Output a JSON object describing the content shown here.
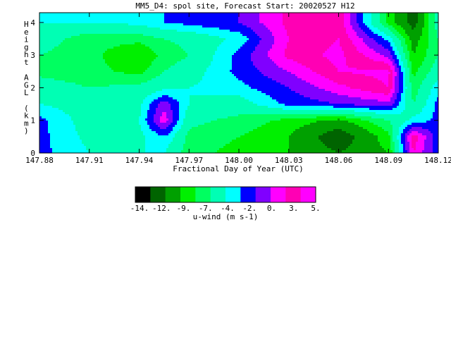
{
  "chart_data": {
    "type": "heatmap",
    "title": "MM5_D4: spol site,  Forecast Start: 20020527 H12",
    "xlabel": "Fractional Day of Year (UTC)",
    "ylabel": "Height AGL (km)",
    "xlim": [
      147.88,
      148.12
    ],
    "ylim": [
      0,
      4.3
    ],
    "x_ticks": [
      "147.88",
      "147.91",
      "147.94",
      "147.97",
      "148.00",
      "148.03",
      "148.06",
      "148.09",
      "148.12"
    ],
    "y_ticks": [
      "0",
      "1",
      "2",
      "3",
      "4"
    ],
    "colorbar": {
      "label": "u-wind (m s-1)",
      "tick_labels": [
        "-14.",
        "-12.",
        "-9.",
        "-7.",
        "-4.",
        "-2.",
        "0.",
        "3.",
        "5."
      ],
      "levels": [
        -14,
        -12.5,
        -11,
        -9,
        -7.5,
        -6,
        -4,
        -2.5,
        -1,
        0.5,
        2,
        3.5,
        5
      ],
      "colors": [
        "#000000",
        "#006400",
        "#00a000",
        "#00f000",
        "#00ff60",
        "#00ffb4",
        "#00ffff",
        "#0000ff",
        "#8000ff",
        "#ff00ff",
        "#ff00b4",
        "#ff00ff"
      ]
    },
    "x": [
      147.88,
      147.91,
      147.94,
      147.955,
      147.97,
      148.0,
      148.03,
      148.06,
      148.09,
      148.105,
      148.12
    ],
    "y": [
      0,
      0.5,
      1.0,
      1.5,
      2.0,
      2.5,
      3.0,
      3.5,
      4.0,
      4.3
    ],
    "z": [
      [
        -2.0,
        -4.0,
        -4.0,
        -4.0,
        -7.0,
        -8.0,
        -9.0,
        -11.0,
        -9.0,
        2.0,
        -2.0
      ],
      [
        -2.0,
        -4.5,
        -4.5,
        -2.5,
        -6.5,
        -7.5,
        -9.0,
        -12.5,
        -8.0,
        3.0,
        -2.0
      ],
      [
        -2.0,
        -5.0,
        -4.0,
        1.5,
        -5.5,
        -6.5,
        -8.0,
        -9.5,
        -6.0,
        -3.5,
        -2.0
      ],
      [
        -4.0,
        -5.0,
        -4.5,
        0.0,
        -4.0,
        -5.0,
        -2.0,
        -1.0,
        0.0,
        -6.0,
        -2.0
      ],
      [
        -5.0,
        -6.0,
        -5.5,
        -4.5,
        -4.0,
        -3.0,
        -1.0,
        1.5,
        3.5,
        -7.0,
        -3.0
      ],
      [
        -6.5,
        -7.0,
        -8.0,
        -6.0,
        -5.0,
        -2.0,
        0.5,
        3.5,
        4.0,
        -8.0,
        -5.0
      ],
      [
        -6.0,
        -7.0,
        -9.0,
        -7.0,
        -6.0,
        -2.0,
        2.5,
        4.0,
        0.0,
        -9.0,
        -6.0
      ],
      [
        -5.0,
        -7.0,
        -7.0,
        -6.0,
        -5.5,
        -3.5,
        2.0,
        3.5,
        -3.0,
        -10.0,
        -6.0
      ],
      [
        -4.0,
        -4.0,
        -3.5,
        -2.5,
        -2.0,
        -1.0,
        2.5,
        3.0,
        -8.0,
        -12.0,
        -5.0
      ],
      [
        -4.0,
        -4.0,
        -3.5,
        -2.5,
        -2.0,
        -1.0,
        2.5,
        3.0,
        -8.0,
        -12.0,
        -5.0
      ]
    ]
  }
}
